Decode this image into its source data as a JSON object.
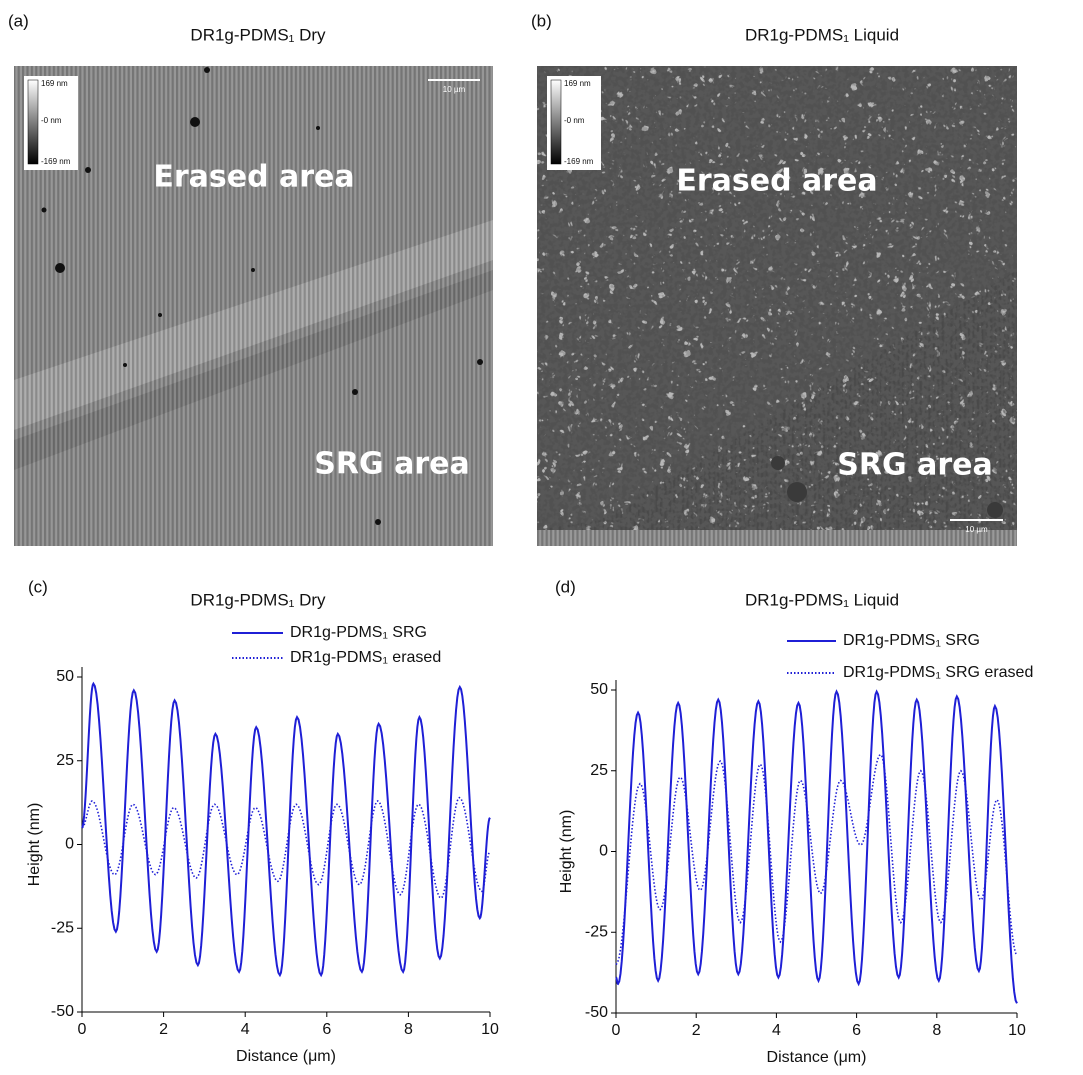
{
  "images": [
    {
      "panel": "(a)",
      "title": "DR1g-PDMS₁ Dry",
      "region_top": "Erased area",
      "region_bottom": "SRG area",
      "colorbar": [
        "169 nm",
        "-0 nm",
        "-169 nm"
      ],
      "scale_bar": "10 µm"
    },
    {
      "panel": "(b)",
      "title": "DR1g-PDMS₁ Liquid",
      "region_top": "Erased area",
      "region_bottom": "SRG area",
      "colorbar": [
        "169 nm",
        "-0 nm",
        "-169 nm"
      ],
      "scale_bar": "10 µm"
    }
  ],
  "chart_data": [
    {
      "type": "line",
      "panel": "(c)",
      "title": "DR1g-PDMS₁ Dry",
      "x_label": "Distance (μm)",
      "y_label": "Height (nm)",
      "xlim": [
        0,
        10
      ],
      "xticks": [
        0,
        2,
        4,
        6,
        8,
        10
      ],
      "ylim": [
        -50,
        50
      ],
      "yticks": [
        -50,
        -25,
        0,
        25,
        50
      ],
      "series": [
        {
          "name": "DR1g-PDMS₁ SRG",
          "color": "#1f1fd6",
          "style": "solid",
          "x": [
            0,
            0.28,
            0.83,
            1.27,
            1.83,
            2.27,
            2.84,
            3.27,
            3.85,
            4.27,
            4.85,
            5.27,
            5.86,
            6.27,
            6.86,
            7.27,
            7.87,
            8.27,
            8.77,
            9.26,
            9.75,
            10
          ],
          "values": [
            5,
            48,
            -26,
            46,
            -32,
            43,
            -36,
            33,
            -38,
            35,
            -39,
            38,
            -39,
            33,
            -38,
            36,
            -38,
            38,
            -34,
            47,
            -22,
            8
          ]
        },
        {
          "name": "DR1g-PDMS₁ erased",
          "color": "#1f1fd6",
          "style": "dotted",
          "x": [
            0,
            0.25,
            0.8,
            1.25,
            1.8,
            2.25,
            2.8,
            3.25,
            3.8,
            4.25,
            4.8,
            5.25,
            5.8,
            6.25,
            6.8,
            7.25,
            7.8,
            8.25,
            8.8,
            9.25,
            9.8,
            10
          ],
          "values": [
            5,
            13,
            -9,
            12,
            -9,
            11,
            -10,
            12,
            -9,
            11,
            -11,
            12,
            -12,
            12,
            -12,
            13,
            -15,
            12,
            -16,
            14,
            -14,
            -2
          ]
        }
      ]
    },
    {
      "type": "line",
      "panel": "(d)",
      "title": "DR1g-PDMS₁ Liquid",
      "x_label": "Distance (μm)",
      "y_label": "Height (nm)",
      "xlim": [
        0,
        10
      ],
      "xticks": [
        0,
        2,
        4,
        6,
        8,
        10
      ],
      "ylim": [
        -50,
        50
      ],
      "yticks": [
        -50,
        -25,
        0,
        25,
        50
      ],
      "series": [
        {
          "name": "DR1g-PDMS₁ SRG",
          "color": "#1f1fd6",
          "style": "solid",
          "x": [
            0,
            0.05,
            0.55,
            1.05,
            1.55,
            2.05,
            2.55,
            3.05,
            3.55,
            4.05,
            4.55,
            5.05,
            5.5,
            6.05,
            6.5,
            7.05,
            7.5,
            8.05,
            8.5,
            9.05,
            9.45,
            10
          ],
          "values": [
            -39,
            -41,
            43,
            -40,
            46,
            -38,
            47,
            -38,
            46.5,
            -39,
            46,
            -40,
            49.5,
            -41,
            49.5,
            -39,
            47,
            -40,
            48,
            -37,
            45,
            -47
          ]
        },
        {
          "name": "DR1g-PDMS₁ SRG erased",
          "color": "#1f1fd6",
          "style": "dotted",
          "x": [
            0,
            0.6,
            1.1,
            1.6,
            2.1,
            2.6,
            3.1,
            3.6,
            4.1,
            4.6,
            5.1,
            5.6,
            6.1,
            6.6,
            7.1,
            7.6,
            8.1,
            8.6,
            9.1,
            9.5,
            10
          ],
          "values": [
            -35,
            21,
            -18,
            23,
            -12,
            28,
            -22,
            27,
            -28,
            22,
            -13,
            22,
            2,
            30,
            -22,
            25,
            -22,
            25,
            -15,
            16,
            -32
          ]
        }
      ]
    }
  ]
}
